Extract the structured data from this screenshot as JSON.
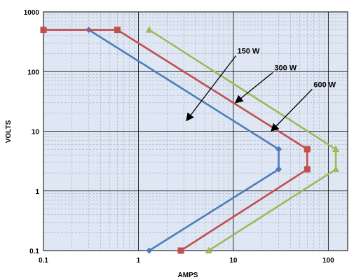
{
  "chart_data": {
    "type": "line",
    "x_scale": "log",
    "y_scale": "log",
    "xlabel": "AMPS",
    "ylabel": "VOLTS",
    "xlim": [
      0.1,
      160
    ],
    "ylim": [
      0.1,
      1000
    ],
    "x_ticks": [
      {
        "value": 0.1,
        "label": "0.1"
      },
      {
        "value": 1,
        "label": "1"
      },
      {
        "value": 10,
        "label": "10"
      },
      {
        "value": 100,
        "label": "100"
      }
    ],
    "y_ticks": [
      {
        "value": 0.1,
        "label": "0.1"
      },
      {
        "value": 1,
        "label": "1"
      },
      {
        "value": 10,
        "label": "10"
      },
      {
        "value": 100,
        "label": "100"
      },
      {
        "value": 1000,
        "label": "1000"
      }
    ],
    "grid": true,
    "plot_background": "#dfe6f4",
    "series": [
      {
        "marker": "diamond",
        "color": "#4a7ebb",
        "points": [
          [
            0.1,
            500
          ],
          [
            0.3,
            500
          ],
          [
            30,
            5
          ],
          [
            30,
            2.3
          ],
          [
            1.3,
            0.1
          ]
        ]
      },
      {
        "marker": "square",
        "color": "#c0504d",
        "points": [
          [
            0.1,
            500
          ],
          [
            0.6,
            500
          ],
          [
            60,
            5
          ],
          [
            60,
            2.3
          ],
          [
            2.8,
            0.1
          ]
        ]
      },
      {
        "marker": "triangle",
        "color": "#9bbb59",
        "points": [
          [
            1.3,
            500
          ],
          [
            120,
            5
          ],
          [
            120,
            2.3
          ],
          [
            5.5,
            0.1
          ]
        ]
      }
    ],
    "annotations": [
      {
        "text": "150 W",
        "text_at": [
          11,
          200
        ],
        "arrow_to": [
          3.2,
          15
        ]
      },
      {
        "text": "300 W",
        "text_at": [
          27,
          105
        ],
        "arrow_to": [
          10.5,
          30
        ]
      },
      {
        "text": "600 W",
        "text_at": [
          70,
          55
        ],
        "arrow_to": [
          25,
          10
        ]
      }
    ]
  }
}
